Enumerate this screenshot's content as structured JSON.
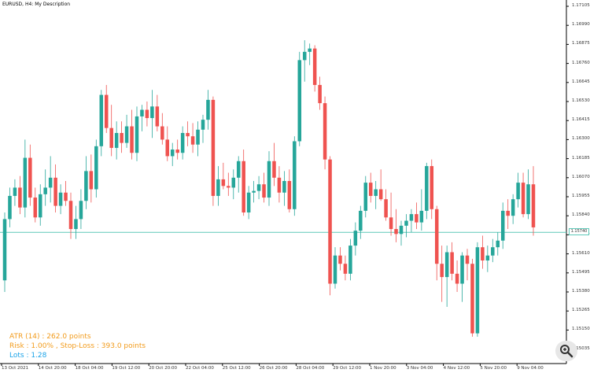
{
  "window": {
    "title": "EURUSD, H4:  My Description"
  },
  "price_axis": {
    "labels": [
      "1.17105",
      "1.16990",
      "1.16875",
      "1.16760",
      "1.16645",
      "1.16530",
      "1.16415",
      "1.16300",
      "1.16185",
      "1.16070",
      "1.15955",
      "1.15840",
      "1.15725",
      "1.15610",
      "1.15495",
      "1.15380",
      "1.15265",
      "1.15150",
      "1.15035"
    ],
    "current_price": "1.15740"
  },
  "time_axis": {
    "labels": [
      "13 Oct 2021",
      "14 Oct 20:00",
      "18 Oct 04:00",
      "19 Oct 12:00",
      "20 Oct 20:00",
      "22 Oct 04:00",
      "25 Oct 12:00",
      "26 Oct 20:00",
      "28 Oct 04:00",
      "29 Oct 12:00",
      "1 Nov 20:00",
      "3 Nov 04:00",
      "4 Nov 12:00",
      "5 Nov 20:00",
      "9 Nov 04:00"
    ]
  },
  "info_panel": {
    "atr": "ATR (14) : 262.0 points",
    "risk": "Risk : 1.00% , Stop-Loss : 393.0 points",
    "lots": "Lots : 1.28"
  },
  "colors": {
    "bull": "#26a69a",
    "bear": "#ef5350",
    "price_line": "#5fc9b9",
    "info_orange": "#f29b1b",
    "info_blue": "#1aa3e8"
  },
  "icons": {
    "zoom": "magnifier-zoom-icon"
  },
  "chart_data": {
    "type": "candlestick",
    "symbol": "EURUSD",
    "timeframe": "H4",
    "ylim": [
      1.15,
      1.1715
    ],
    "current_price": 1.1574,
    "candles": [
      {
        "o": 1.1545,
        "h": 1.1586,
        "l": 1.1538,
        "c": 1.1582
      },
      {
        "o": 1.1582,
        "h": 1.1601,
        "l": 1.1577,
        "c": 1.1596
      },
      {
        "o": 1.1596,
        "h": 1.1606,
        "l": 1.159,
        "c": 1.1601
      },
      {
        "o": 1.1601,
        "h": 1.1608,
        "l": 1.1585,
        "c": 1.1589
      },
      {
        "o": 1.1589,
        "h": 1.163,
        "l": 1.1583,
        "c": 1.1619
      },
      {
        "o": 1.1619,
        "h": 1.1627,
        "l": 1.159,
        "c": 1.1595
      },
      {
        "o": 1.1595,
        "h": 1.1601,
        "l": 1.158,
        "c": 1.1583
      },
      {
        "o": 1.1583,
        "h": 1.1603,
        "l": 1.1578,
        "c": 1.1597
      },
      {
        "o": 1.1597,
        "h": 1.1612,
        "l": 1.159,
        "c": 1.1601
      },
      {
        "o": 1.1601,
        "h": 1.162,
        "l": 1.1592,
        "c": 1.1607
      },
      {
        "o": 1.1607,
        "h": 1.1615,
        "l": 1.1586,
        "c": 1.159
      },
      {
        "o": 1.159,
        "h": 1.1603,
        "l": 1.1585,
        "c": 1.1598
      },
      {
        "o": 1.1598,
        "h": 1.1605,
        "l": 1.159,
        "c": 1.1593
      },
      {
        "o": 1.1593,
        "h": 1.1598,
        "l": 1.157,
        "c": 1.1576
      },
      {
        "o": 1.1576,
        "h": 1.159,
        "l": 1.157,
        "c": 1.1582
      },
      {
        "o": 1.1582,
        "h": 1.16,
        "l": 1.1576,
        "c": 1.1593
      },
      {
        "o": 1.1593,
        "h": 1.162,
        "l": 1.1588,
        "c": 1.1611
      },
      {
        "o": 1.1611,
        "h": 1.1621,
        "l": 1.1592,
        "c": 1.16
      },
      {
        "o": 1.16,
        "h": 1.163,
        "l": 1.1595,
        "c": 1.1626
      },
      {
        "o": 1.1626,
        "h": 1.166,
        "l": 1.162,
        "c": 1.1657
      },
      {
        "o": 1.1657,
        "h": 1.1663,
        "l": 1.1634,
        "c": 1.1637
      },
      {
        "o": 1.1637,
        "h": 1.1651,
        "l": 1.162,
        "c": 1.1625
      },
      {
        "o": 1.1625,
        "h": 1.1641,
        "l": 1.1618,
        "c": 1.1634
      },
      {
        "o": 1.1634,
        "h": 1.1641,
        "l": 1.1622,
        "c": 1.1628
      },
      {
        "o": 1.1628,
        "h": 1.1645,
        "l": 1.1625,
        "c": 1.1638
      },
      {
        "o": 1.1638,
        "h": 1.1648,
        "l": 1.1618,
        "c": 1.1622
      },
      {
        "o": 1.1622,
        "h": 1.165,
        "l": 1.1617,
        "c": 1.1644
      },
      {
        "o": 1.1644,
        "h": 1.1651,
        "l": 1.1635,
        "c": 1.1648
      },
      {
        "o": 1.1648,
        "h": 1.1653,
        "l": 1.1638,
        "c": 1.1643
      },
      {
        "o": 1.1643,
        "h": 1.166,
        "l": 1.1631,
        "c": 1.165
      },
      {
        "o": 1.165,
        "h": 1.1657,
        "l": 1.1635,
        "c": 1.1638
      },
      {
        "o": 1.1638,
        "h": 1.1646,
        "l": 1.1627,
        "c": 1.163
      },
      {
        "o": 1.163,
        "h": 1.1638,
        "l": 1.1617,
        "c": 1.162
      },
      {
        "o": 1.162,
        "h": 1.1628,
        "l": 1.1614,
        "c": 1.1624
      },
      {
        "o": 1.1624,
        "h": 1.163,
        "l": 1.1618,
        "c": 1.1622
      },
      {
        "o": 1.1622,
        "h": 1.1638,
        "l": 1.1618,
        "c": 1.1634
      },
      {
        "o": 1.1634,
        "h": 1.1641,
        "l": 1.1626,
        "c": 1.1632
      },
      {
        "o": 1.1632,
        "h": 1.164,
        "l": 1.1622,
        "c": 1.1627
      },
      {
        "o": 1.1627,
        "h": 1.1641,
        "l": 1.162,
        "c": 1.1636
      },
      {
        "o": 1.1636,
        "h": 1.1645,
        "l": 1.1628,
        "c": 1.1642
      },
      {
        "o": 1.1642,
        "h": 1.166,
        "l": 1.1636,
        "c": 1.1654
      },
      {
        "o": 1.1654,
        "h": 1.1656,
        "l": 1.159,
        "c": 1.1596
      },
      {
        "o": 1.1596,
        "h": 1.1614,
        "l": 1.159,
        "c": 1.1606
      },
      {
        "o": 1.1606,
        "h": 1.1616,
        "l": 1.16,
        "c": 1.1602
      },
      {
        "o": 1.1602,
        "h": 1.161,
        "l": 1.1596,
        "c": 1.1601
      },
      {
        "o": 1.1601,
        "h": 1.1612,
        "l": 1.1594,
        "c": 1.1607
      },
      {
        "o": 1.1607,
        "h": 1.162,
        "l": 1.1598,
        "c": 1.1617
      },
      {
        "o": 1.1617,
        "h": 1.1624,
        "l": 1.1584,
        "c": 1.1586
      },
      {
        "o": 1.1586,
        "h": 1.1602,
        "l": 1.1582,
        "c": 1.1598
      },
      {
        "o": 1.1598,
        "h": 1.1605,
        "l": 1.1592,
        "c": 1.1599
      },
      {
        "o": 1.1599,
        "h": 1.1608,
        "l": 1.1594,
        "c": 1.1603
      },
      {
        "o": 1.1603,
        "h": 1.161,
        "l": 1.1592,
        "c": 1.1595
      },
      {
        "o": 1.1595,
        "h": 1.1623,
        "l": 1.159,
        "c": 1.1617
      },
      {
        "o": 1.1617,
        "h": 1.1628,
        "l": 1.1602,
        "c": 1.1607
      },
      {
        "o": 1.1607,
        "h": 1.1614,
        "l": 1.1592,
        "c": 1.1598
      },
      {
        "o": 1.1598,
        "h": 1.1611,
        "l": 1.159,
        "c": 1.1605
      },
      {
        "o": 1.1605,
        "h": 1.1612,
        "l": 1.1586,
        "c": 1.1588
      },
      {
        "o": 1.1588,
        "h": 1.1632,
        "l": 1.1584,
        "c": 1.1629
      },
      {
        "o": 1.1629,
        "h": 1.1683,
        "l": 1.1626,
        "c": 1.1678
      },
      {
        "o": 1.1678,
        "h": 1.169,
        "l": 1.1665,
        "c": 1.1683
      },
      {
        "o": 1.1683,
        "h": 1.1688,
        "l": 1.1675,
        "c": 1.1685
      },
      {
        "o": 1.1685,
        "h": 1.1687,
        "l": 1.1659,
        "c": 1.1663
      },
      {
        "o": 1.1663,
        "h": 1.1668,
        "l": 1.1648,
        "c": 1.1652
      },
      {
        "o": 1.1652,
        "h": 1.1656,
        "l": 1.1612,
        "c": 1.1618
      },
      {
        "o": 1.1618,
        "h": 1.162,
        "l": 1.1536,
        "c": 1.1543
      },
      {
        "o": 1.1543,
        "h": 1.1565,
        "l": 1.154,
        "c": 1.156
      },
      {
        "o": 1.156,
        "h": 1.1565,
        "l": 1.1551,
        "c": 1.1555
      },
      {
        "o": 1.1555,
        "h": 1.156,
        "l": 1.1545,
        "c": 1.1549
      },
      {
        "o": 1.1549,
        "h": 1.157,
        "l": 1.1545,
        "c": 1.1566
      },
      {
        "o": 1.1566,
        "h": 1.158,
        "l": 1.156,
        "c": 1.1575
      },
      {
        "o": 1.1575,
        "h": 1.159,
        "l": 1.157,
        "c": 1.1587
      },
      {
        "o": 1.1587,
        "h": 1.1608,
        "l": 1.1583,
        "c": 1.1604
      },
      {
        "o": 1.1604,
        "h": 1.161,
        "l": 1.1592,
        "c": 1.1596
      },
      {
        "o": 1.1596,
        "h": 1.1605,
        "l": 1.1588,
        "c": 1.16
      },
      {
        "o": 1.16,
        "h": 1.1612,
        "l": 1.1593,
        "c": 1.1594
      },
      {
        "o": 1.1594,
        "h": 1.16,
        "l": 1.1581,
        "c": 1.1583
      },
      {
        "o": 1.1583,
        "h": 1.1598,
        "l": 1.1572,
        "c": 1.1576
      },
      {
        "o": 1.1576,
        "h": 1.1588,
        "l": 1.1568,
        "c": 1.1573
      },
      {
        "o": 1.1573,
        "h": 1.1581,
        "l": 1.1566,
        "c": 1.1578
      },
      {
        "o": 1.1578,
        "h": 1.1585,
        "l": 1.1571,
        "c": 1.1581
      },
      {
        "o": 1.1581,
        "h": 1.1588,
        "l": 1.1574,
        "c": 1.1585
      },
      {
        "o": 1.1585,
        "h": 1.1592,
        "l": 1.1576,
        "c": 1.158
      },
      {
        "o": 1.158,
        "h": 1.16,
        "l": 1.1575,
        "c": 1.1587
      },
      {
        "o": 1.1587,
        "h": 1.1616,
        "l": 1.1582,
        "c": 1.1614
      },
      {
        "o": 1.1614,
        "h": 1.1618,
        "l": 1.1582,
        "c": 1.1588
      },
      {
        "o": 1.1588,
        "h": 1.159,
        "l": 1.1545,
        "c": 1.1555
      },
      {
        "o": 1.1555,
        "h": 1.1566,
        "l": 1.1532,
        "c": 1.1547
      },
      {
        "o": 1.1547,
        "h": 1.1566,
        "l": 1.1529,
        "c": 1.1562
      },
      {
        "o": 1.1562,
        "h": 1.1568,
        "l": 1.1545,
        "c": 1.1549
      },
      {
        "o": 1.1549,
        "h": 1.1557,
        "l": 1.1538,
        "c": 1.1543
      },
      {
        "o": 1.1543,
        "h": 1.1562,
        "l": 1.1532,
        "c": 1.156
      },
      {
        "o": 1.156,
        "h": 1.1564,
        "l": 1.1545,
        "c": 1.1555
      },
      {
        "o": 1.1555,
        "h": 1.1558,
        "l": 1.1511,
        "c": 1.1513
      },
      {
        "o": 1.1513,
        "h": 1.1568,
        "l": 1.1511,
        "c": 1.1565
      },
      {
        "o": 1.1565,
        "h": 1.1572,
        "l": 1.1552,
        "c": 1.1557
      },
      {
        "o": 1.1557,
        "h": 1.1566,
        "l": 1.155,
        "c": 1.156
      },
      {
        "o": 1.156,
        "h": 1.157,
        "l": 1.1556,
        "c": 1.1565
      },
      {
        "o": 1.1565,
        "h": 1.1574,
        "l": 1.156,
        "c": 1.1569
      },
      {
        "o": 1.1569,
        "h": 1.1592,
        "l": 1.1564,
        "c": 1.1587
      },
      {
        "o": 1.1587,
        "h": 1.1594,
        "l": 1.1576,
        "c": 1.1584
      },
      {
        "o": 1.1584,
        "h": 1.1597,
        "l": 1.1579,
        "c": 1.1594
      },
      {
        "o": 1.1594,
        "h": 1.161,
        "l": 1.1589,
        "c": 1.1604
      },
      {
        "o": 1.1604,
        "h": 1.161,
        "l": 1.1583,
        "c": 1.1585
      },
      {
        "o": 1.1585,
        "h": 1.1612,
        "l": 1.1582,
        "c": 1.1603
      },
      {
        "o": 1.1603,
        "h": 1.1614,
        "l": 1.1572,
        "c": 1.1577
      }
    ]
  }
}
